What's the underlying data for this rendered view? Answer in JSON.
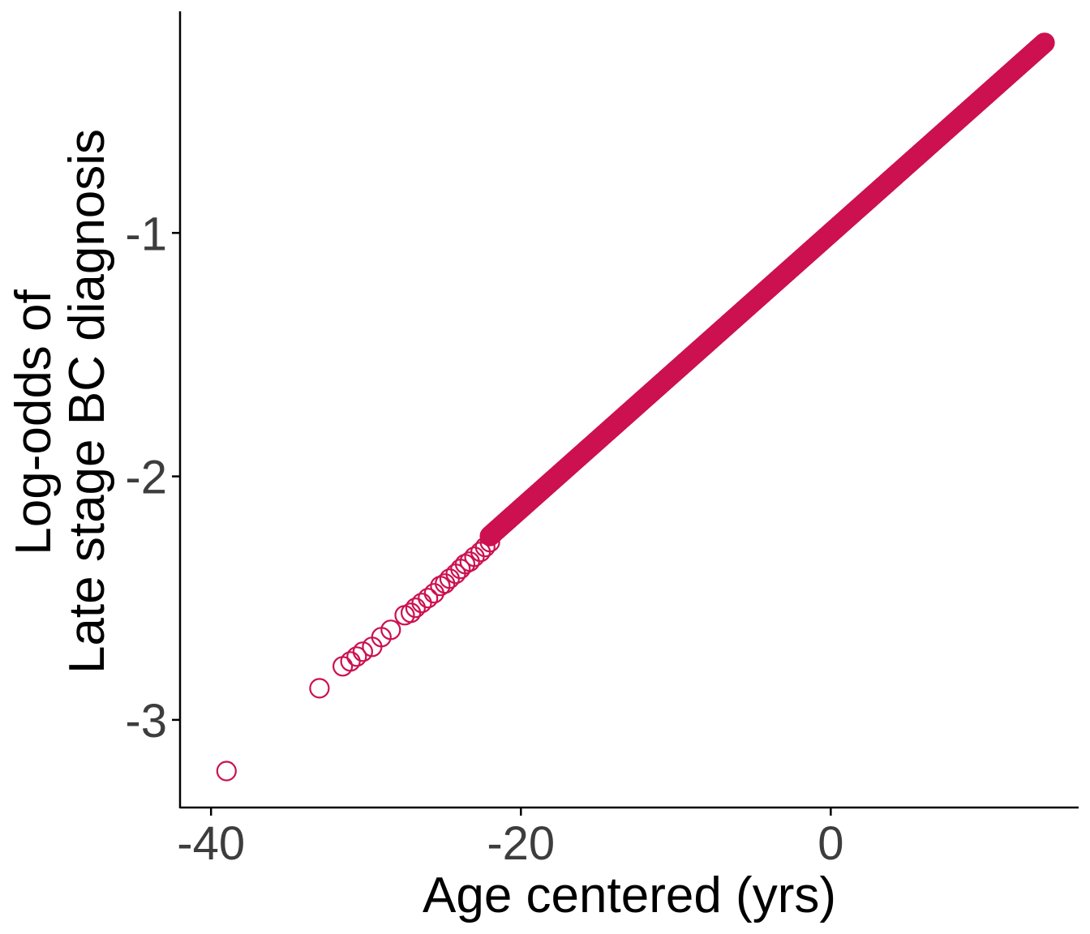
{
  "chart_data": {
    "type": "scatter",
    "title": "",
    "xlabel": "Age centered (yrs)",
    "ylabel_line1": "Log-odds of",
    "ylabel_line2": "Late stage BC diagnosis",
    "xlim": [
      -42,
      16
    ],
    "ylim": [
      -3.36,
      -0.09
    ],
    "x_ticks": [
      -40,
      -20,
      0
    ],
    "x_tick_labels": [
      "-40",
      "-20",
      "0"
    ],
    "y_ticks": [
      -3,
      -2,
      -1
    ],
    "y_tick_labels": [
      "-3",
      "-2",
      "-1"
    ],
    "grid": false,
    "legend": "none",
    "point_color": "#cc1150",
    "fit": {
      "intercept": -1.0,
      "slope": 0.05659
    },
    "points": [
      {
        "x": -39.0,
        "y": -3.21
      },
      {
        "x": -33.0,
        "y": -2.87
      },
      {
        "x": -31.5,
        "y": -2.78
      },
      {
        "x": -31.0,
        "y": -2.76
      },
      {
        "x": -30.6,
        "y": -2.74
      },
      {
        "x": -30.2,
        "y": -2.72
      },
      {
        "x": -29.6,
        "y": -2.7
      },
      {
        "x": -29.0,
        "y": -2.66
      },
      {
        "x": -28.4,
        "y": -2.63
      },
      {
        "x": -27.5,
        "y": -2.57
      },
      {
        "x": -27.1,
        "y": -2.56
      },
      {
        "x": -26.8,
        "y": -2.54
      },
      {
        "x": -26.4,
        "y": -2.52
      },
      {
        "x": -26.0,
        "y": -2.5
      },
      {
        "x": -25.6,
        "y": -2.48
      },
      {
        "x": -25.2,
        "y": -2.45
      },
      {
        "x": -24.9,
        "y": -2.44
      },
      {
        "x": -24.6,
        "y": -2.42
      },
      {
        "x": -24.2,
        "y": -2.4
      },
      {
        "x": -23.9,
        "y": -2.38
      },
      {
        "x": -23.6,
        "y": -2.36
      },
      {
        "x": -23.3,
        "y": -2.35
      },
      {
        "x": -23.0,
        "y": -2.33
      },
      {
        "x": -22.6,
        "y": -2.31
      },
      {
        "x": -22.3,
        "y": -2.29
      },
      {
        "x": -22.0,
        "y": -2.27
      }
    ],
    "dense_range": [
      -22.0,
      13.8
    ]
  }
}
